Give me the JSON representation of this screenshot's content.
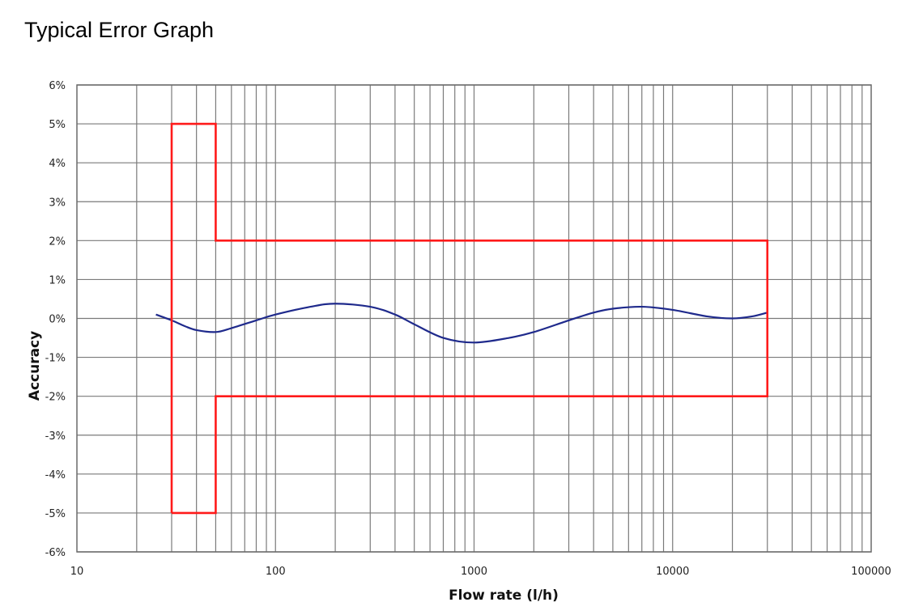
{
  "page_title": "Typical Error Graph",
  "chart_data": {
    "type": "line",
    "title": "",
    "xlabel": "Flow rate (l/h)",
    "ylabel": "Accuracy",
    "xscale": "log",
    "xlim": [
      10,
      100000
    ],
    "ylim": [
      -6,
      6
    ],
    "grid": true,
    "x_tick_labels": [
      "10",
      "100",
      "1000",
      "10000",
      "100000"
    ],
    "y_tick_labels": [
      "6%",
      "5%",
      "4%",
      "3%",
      "2%",
      "1%",
      "0%",
      "-1%",
      "-2%",
      "-3%",
      "-4%",
      "-5%",
      "-6%"
    ],
    "series": [
      {
        "color": "#1f2a8c",
        "x": [
          25,
          30,
          35,
          40,
          50,
          60,
          80,
          100,
          150,
          200,
          300,
          400,
          500,
          700,
          1000,
          1500,
          2000,
          3000,
          4000,
          5000,
          7000,
          10000,
          15000,
          20000,
          25000,
          30000
        ],
        "y": [
          0.1,
          -0.05,
          -0.2,
          -0.3,
          -0.35,
          -0.25,
          -0.05,
          0.1,
          0.3,
          0.38,
          0.3,
          0.1,
          -0.15,
          -0.5,
          -0.62,
          -0.5,
          -0.35,
          -0.05,
          0.15,
          0.25,
          0.3,
          0.22,
          0.05,
          0.0,
          0.05,
          0.15
        ]
      },
      {
        "color": "#ff1a1a",
        "x": [
          30,
          30,
          50,
          50,
          30000,
          30000,
          50,
          50,
          30
        ],
        "y": [
          -5,
          5,
          5,
          2,
          2,
          -2,
          -2,
          -5,
          -5
        ]
      }
    ]
  }
}
